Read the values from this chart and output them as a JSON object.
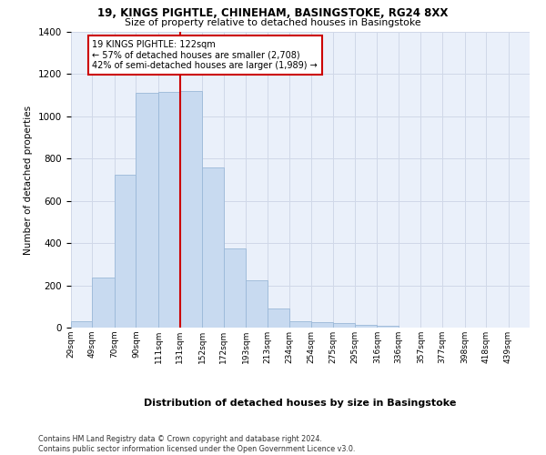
{
  "title1": "19, KINGS PIGHTLE, CHINEHAM, BASINGSTOKE, RG24 8XX",
  "title2": "Size of property relative to detached houses in Basingstoke",
  "xlabel": "Distribution of detached houses by size in Basingstoke",
  "ylabel": "Number of detached properties",
  "footnote": "Contains HM Land Registry data © Crown copyright and database right 2024.\nContains public sector information licensed under the Open Government Licence v3.0.",
  "bin_labels": [
    "29sqm",
    "49sqm",
    "70sqm",
    "90sqm",
    "111sqm",
    "131sqm",
    "152sqm",
    "172sqm",
    "193sqm",
    "213sqm",
    "234sqm",
    "254sqm",
    "275sqm",
    "295sqm",
    "316sqm",
    "336sqm",
    "357sqm",
    "377sqm",
    "398sqm",
    "418sqm",
    "439sqm"
  ],
  "bar_heights": [
    30,
    235,
    725,
    1110,
    1115,
    1120,
    760,
    375,
    225,
    90,
    30,
    25,
    20,
    15,
    10,
    0,
    0,
    0,
    0,
    0
  ],
  "bar_color": "#c8daf0",
  "bar_edge_color": "#9ab8d8",
  "vline_color": "#cc0000",
  "annotation_text": "19 KINGS PIGHTLE: 122sqm\n← 57% of detached houses are smaller (2,708)\n42% of semi-detached houses are larger (1,989) →",
  "annotation_box_color": "#ffffff",
  "annotation_box_edge": "#cc0000",
  "ylim": [
    0,
    1400
  ],
  "bin_edges": [
    29,
    49,
    70,
    90,
    111,
    131,
    152,
    172,
    193,
    213,
    234,
    254,
    275,
    295,
    316,
    336,
    357,
    377,
    398,
    418,
    439
  ],
  "grid_color": "#d0d8e8",
  "bg_color": "#eaf0fa"
}
